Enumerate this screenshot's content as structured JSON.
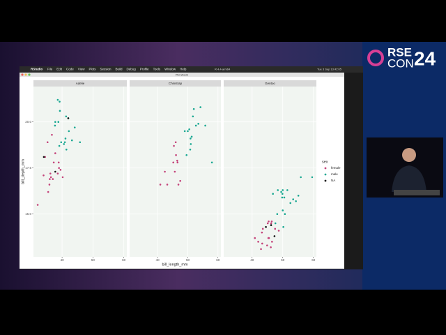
{
  "app": {
    "name": "RStudio",
    "menu": [
      "File",
      "Edit",
      "Code",
      "View",
      "Plots",
      "Session",
      "Build",
      "Debug",
      "Profile",
      "Tools",
      "Window",
      "Help"
    ],
    "window_title": "Plot Zoom",
    "r_version": "R 4.4-arm64",
    "clock": "Tue 3 Sep 13:42:05"
  },
  "logo": {
    "top": "RSE",
    "bottom": "CON",
    "number": "24"
  },
  "chart_data": {
    "type": "scatter",
    "xlabel": "bill_length_mm",
    "ylabel": "bill_depth_mm",
    "legend_title": "sex",
    "xlim": [
      30.725,
      60.975
    ],
    "ylim": [
      12.68,
      21.92
    ],
    "xticks": [
      40,
      50,
      60
    ],
    "yticks": [
      {
        "value": 15,
        "label": "15.0"
      },
      17.5,
      {
        "value": 20,
        "label": "20.0"
      }
    ],
    "grid": true,
    "series": [
      {
        "name": "female",
        "color": "#c4437a"
      },
      {
        "name": "male",
        "color": "#1aa892"
      },
      {
        "name": "NA",
        "color": "#111111"
      }
    ],
    "facets": [
      {
        "title": "Adelie",
        "series": [
          {
            "x": [
              36.7,
              39.5,
              35.9,
              38.9,
              37.8,
              36.0,
              34.5,
              38.6,
              37.0,
              35.5,
              39.0,
              36.2,
              40.2,
              34.0,
              37.3,
              35.3,
              32.1,
              36.4
            ],
            "values": [
              19.3,
              17.4,
              16.6,
              17.8,
              18.3,
              16.9,
              18.1,
              17.2,
              16.9,
              16.2,
              17.5,
              17.2,
              17.0,
              17.1,
              17.8,
              18.9,
              15.5,
              17.0
            ]
          },
          {
            "x": [
              39.1,
              39.3,
              38.6,
              42.0,
              41.1,
              37.8,
              40.6,
              41.3,
              38.8,
              43.2,
              45.8,
              40.9,
              42.2,
              39.7,
              44.1,
              37.7,
              41.4,
              39.2
            ],
            "values": [
              18.7,
              20.6,
              21.2,
              20.2,
              19.1,
              20.0,
              18.8,
              20.3,
              20.0,
              19.0,
              18.9,
              18.9,
              19.5,
              18.9,
              19.7,
              19.8,
              18.5,
              21.1
            ]
          },
          {
            "x": [
              34.1,
              42.0,
              37.8
            ],
            "values": [
              18.1,
              20.2,
              17.3
            ]
          }
        ]
      },
      {
        "title": "Chinstrap",
        "series": [
          {
            "x": [
              46.5,
              45.4,
              45.2,
              46.1,
              46.0,
              42.4,
              43.2,
              46.6,
              45.7,
              47.5,
              46.9,
              40.9
            ],
            "values": [
              17.9,
              18.7,
              17.8,
              18.2,
              18.9,
              17.3,
              16.6,
              17.8,
              17.3,
              16.8,
              16.6,
              16.6
            ]
          },
          {
            "x": [
              50.0,
              51.3,
              52.7,
              50.5,
              49.0,
              52.0,
              53.5,
              50.8,
              51.7,
              55.8,
              49.6,
              54.2,
              51.0,
              50.9,
              58.0
            ],
            "values": [
              19.5,
              19.2,
              19.8,
              19.6,
              19.5,
              20.7,
              19.9,
              18.5,
              20.3,
              19.8,
              18.2,
              20.8,
              18.8,
              19.1,
              17.8
            ]
          },
          {
            "x": [],
            "values": []
          }
        ]
      },
      {
        "title": "Gentoo",
        "series": [
          {
            "x": [
              46.1,
              48.7,
              46.5,
              45.4,
              43.3,
              40.9,
              45.5,
              42.0,
              46.2,
              45.1,
              44.9,
              43.2,
              46.4,
              47.5,
              43.5,
              45.3,
              42.9
            ],
            "values": [
              13.2,
              14.1,
              13.5,
              14.6,
              13.4,
              13.7,
              13.7,
              13.5,
              14.5,
              14.5,
              13.3,
              14.0,
              14.6,
              14.2,
              14.2,
              13.7,
              13.1
            ]
          },
          {
            "x": [
              50.0,
              50.0,
              47.6,
              48.4,
              49.9,
              50.5,
              50.2,
              49.5,
              52.5,
              55.9,
              49.8,
              48.2,
              59.6,
              54.3,
              51.5,
              46.8,
              55.1,
              50.7,
              53.4
            ],
            "values": [
              16.3,
              15.2,
              14.5,
              16.3,
              16.1,
              15.9,
              14.3,
              16.2,
              15.6,
              17.0,
              15.9,
              15.0,
              17.0,
              15.7,
              16.3,
              16.1,
              16.0,
              15.0,
              15.8
            ]
          },
          {
            "x": [
              44.5,
              46.2,
              47.3
            ],
            "values": [
              14.3,
              14.4,
              13.8
            ]
          }
        ]
      }
    ]
  }
}
